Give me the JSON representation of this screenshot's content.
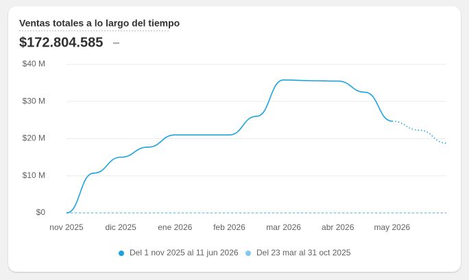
{
  "header": {
    "total": "$172.804.585",
    "change": "–"
  },
  "chart_data": {
    "type": "line",
    "title": "Ventas totales a lo largo del tiempo",
    "categories": [
      "nov 2025",
      null,
      "dic 2025",
      null,
      "ene 2026",
      null,
      "feb 2026",
      null,
      "mar 2026",
      null,
      "abr 2026",
      null,
      "may 2026",
      null,
      null
    ],
    "series": [
      {
        "name": "Del 1 nov 2025 al 11 jun 2026",
        "color": "#1aa3e3",
        "values": [
          0,
          10.7,
          15,
          17.7,
          21,
          21,
          21,
          26,
          35.8,
          35.6,
          35.5,
          32.5,
          24.7,
          22.3,
          18.8
        ]
      },
      {
        "name": "Del 23 mar al 31 oct 2025",
        "color": "#7fc9ea",
        "values": [
          0,
          0,
          0,
          0,
          0,
          0,
          0,
          0,
          0,
          0,
          0,
          0,
          0,
          0,
          0
        ]
      }
    ],
    "ylim": [
      0,
      40
    ],
    "yticks": [
      {
        "value": 0,
        "label": "$0"
      },
      {
        "value": 10,
        "label": "$10 M"
      },
      {
        "value": 20,
        "label": "$20 M"
      },
      {
        "value": 30,
        "label": "$30 M"
      },
      {
        "value": 40,
        "label": "$40 M"
      }
    ],
    "grid": true
  }
}
